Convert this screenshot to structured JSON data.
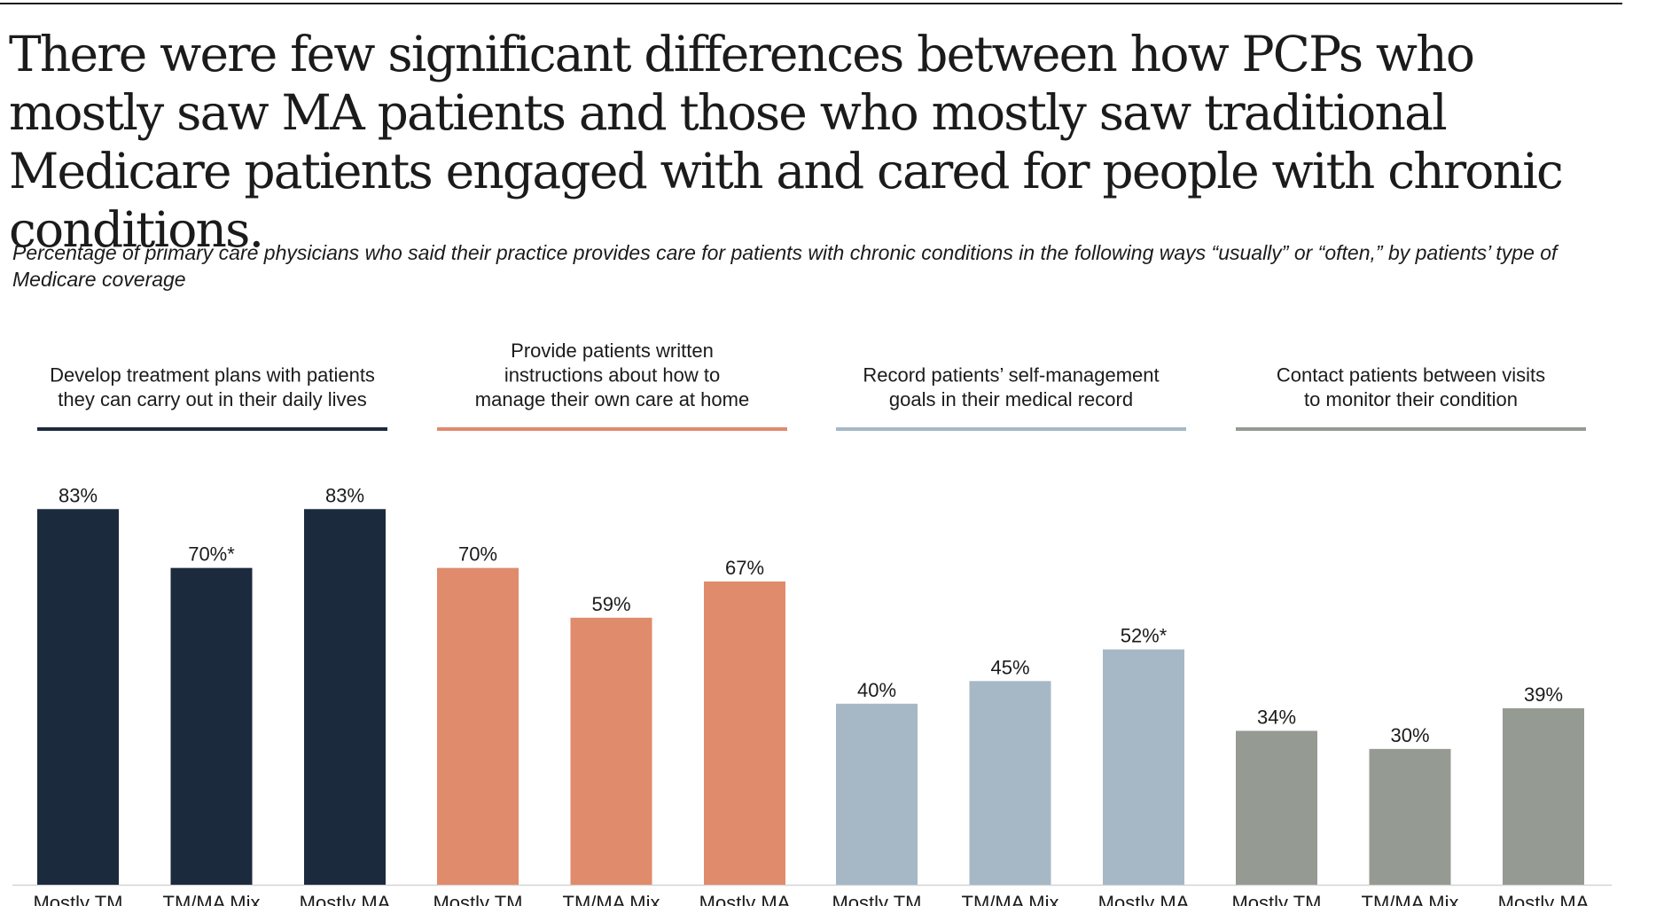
{
  "title": "There were few significant differences between how PCPs who mostly saw MA patients and those who mostly saw traditional Medicare patients engaged with and cared for people with chronic conditions.",
  "subtitle": "Percentage of primary care physicians who said their practice provides care for patients with chronic conditions in the following ways “usually” or “often,” by patients’ type of Medicare coverage",
  "chart_data": {
    "type": "bar",
    "categories": [
      "Mostly TM",
      "TM/MA Mix",
      "Mostly MA"
    ],
    "ylim": [
      0,
      100
    ],
    "unit": "%",
    "groups": [
      {
        "name": "develop-plans",
        "label_lines": [
          "Develop treatment plans with patients",
          "they can carry out in their daily lives"
        ],
        "color": "#1c2a3e",
        "values": [
          83,
          70,
          83
        ],
        "value_labels": [
          "83%",
          "70%*",
          "83%"
        ]
      },
      {
        "name": "written-instructions",
        "label_lines": [
          "Provide patients written",
          "instructions about how to",
          "manage their own care at home"
        ],
        "color": "#e08b6c",
        "values": [
          70,
          59,
          67
        ],
        "value_labels": [
          "70%",
          "59%",
          "67%"
        ]
      },
      {
        "name": "self-management-goals",
        "label_lines": [
          "Record patients’ self-management",
          "goals in their medical record"
        ],
        "color": "#a6b8c5",
        "values": [
          40,
          45,
          52
        ],
        "value_labels": [
          "40%",
          "45%",
          "52%*"
        ]
      },
      {
        "name": "contact-between-visits",
        "label_lines": [
          "Contact patients between visits",
          "to monitor their condition"
        ],
        "color": "#959a93",
        "values": [
          34,
          30,
          39
        ],
        "value_labels": [
          "34%",
          "30%",
          "39%"
        ]
      }
    ]
  }
}
